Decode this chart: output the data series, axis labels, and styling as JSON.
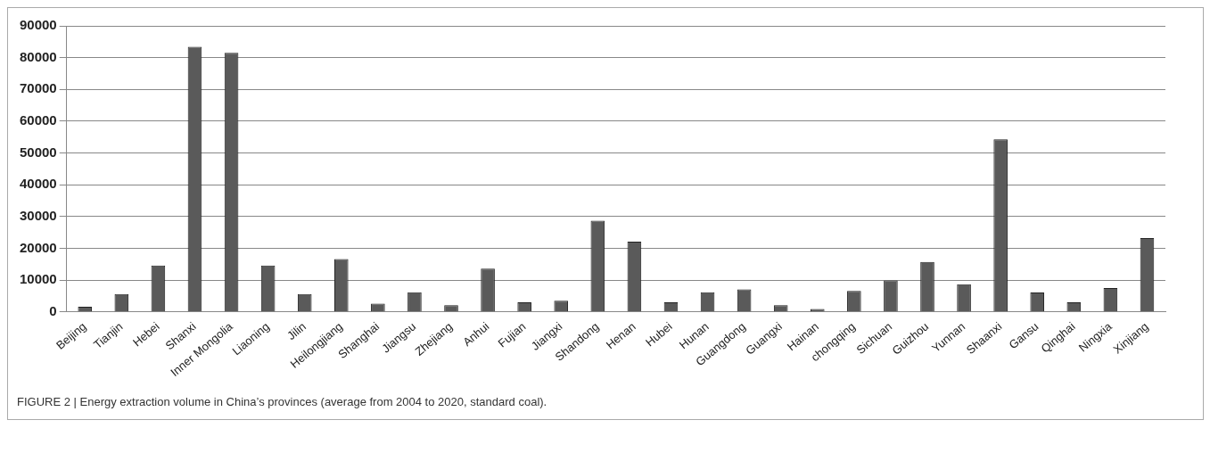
{
  "chart_data": {
    "type": "bar",
    "categories": [
      "Beijing",
      "Tianjin",
      "Hebei",
      "Shanxi",
      "Inner Mongolia",
      "Liaoning",
      "Jilin",
      "Heilongjiang",
      "Shanghai",
      "Jiangsu",
      "Zhejiang",
      "Anhui",
      "Fujian",
      "Jiangxi",
      "Shandong",
      "Henan",
      "Hubei",
      "Hunan",
      "Guangdong",
      "Guangxi",
      "Hainan",
      "chongqing",
      "Sichuan",
      "Guizhou",
      "Yunnan",
      "Shaanxi",
      "Gansu",
      "Qinghai",
      "Ningxia",
      "Xinjiang"
    ],
    "values": [
      1600,
      5600,
      14600,
      83400,
      81500,
      14600,
      5600,
      16600,
      2600,
      6200,
      2100,
      13600,
      3000,
      3500,
      28700,
      22100,
      3000,
      6200,
      7100,
      2100,
      900,
      6600,
      9900,
      15700,
      8700,
      54300,
      6100,
      3000,
      7500,
      23200
    ],
    "color": "#5a5a5a",
    "ylim": [
      0,
      90000
    ],
    "yticks": [
      0,
      10000,
      20000,
      30000,
      40000,
      50000,
      60000,
      70000,
      80000,
      90000
    ],
    "grid": "y",
    "annotations": [
      "FIGURE 2 | Energy extraction volume in China’s provinces (average from 2004 to 2020, standard coal)."
    ]
  }
}
